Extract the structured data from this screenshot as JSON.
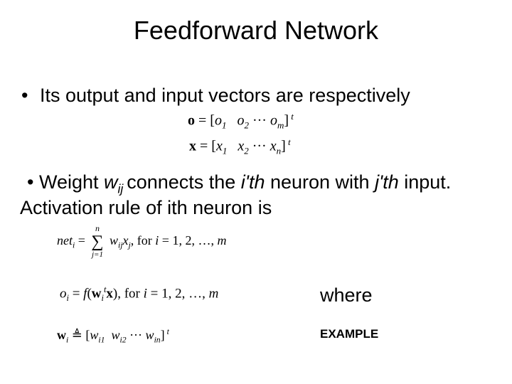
{
  "title": "Feedforward Network",
  "bullets": {
    "b1": "Its output and input vectors are respectively",
    "b2_pre": "Weight ",
    "b2_w": "w",
    "b2_ij": "ij ",
    "b2_mid1": "connects the ",
    "b2_ith": "i'th",
    "b2_mid2": " neuron with ",
    "b2_jth": "j'th",
    "b2_mid3": " input. Activation rule of ith neuron is"
  },
  "vec_o": {
    "lhs": "o",
    "eq": " = ",
    "lb": "[",
    "o1": "o",
    "s1": "1",
    "o2": "o",
    "s2": "2",
    "dots": " ··· ",
    "om": "o",
    "sm": "m",
    "rb": "]",
    "t": " t"
  },
  "vec_x": {
    "lhs": "x",
    "eq": " = ",
    "lb": "[",
    "x1": "x",
    "s1": "1",
    "x2": "x",
    "s2": "2",
    "dots": " ··· ",
    "xn": "x",
    "sn": "n",
    "rb": "]",
    "t": " t"
  },
  "eq_net": {
    "net": "net",
    "i": "i",
    "eq": " = ",
    "sum_top": "n",
    "sum_bot": "j=1",
    "w": "w",
    "ij": "ij",
    "x": "x",
    "j": "j",
    "comma": ",",
    "fortxt": "   for ",
    "ivar": "i",
    "range": " = 1, 2, …, ",
    "m": "m"
  },
  "eq_oi": {
    "o": "o",
    "i": "i",
    "eq": " = ",
    "f": "f",
    "lp": "(",
    "w": "w",
    "isub": "i",
    "t": "t",
    "x": "x",
    "rp": "),",
    "fortxt": "   for ",
    "ivar": "i",
    "range": " = 1, 2, …, ",
    "m": "m"
  },
  "where": "where",
  "example": "EXAMPLE",
  "eq_wi": {
    "w": "w",
    "i": "i",
    "def": " ≜ ",
    "lb": "[",
    "w1": "w",
    "s1": "i1",
    "w2": "w",
    "s2": "i2",
    "dots": " ··· ",
    "wn": "w",
    "sn": "in",
    "rb": "]",
    "t": " t"
  }
}
